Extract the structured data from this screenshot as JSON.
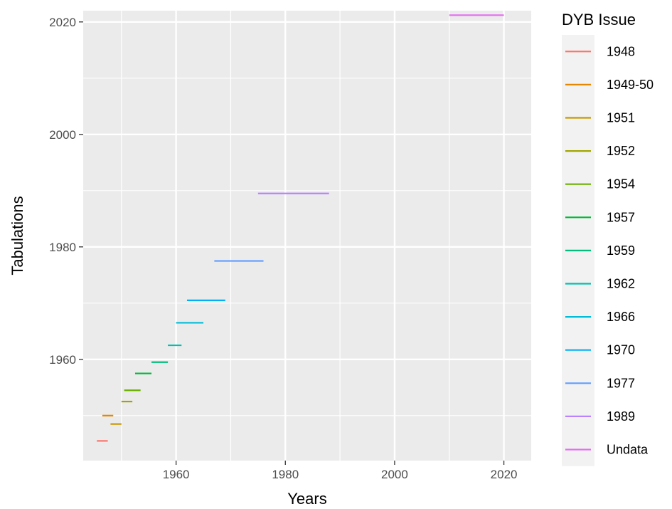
{
  "chart_data": {
    "type": "line",
    "title": "",
    "xlabel": "Years",
    "ylabel": "Tabulations",
    "xlim": [
      1943,
      2025
    ],
    "ylim": [
      1942,
      2022
    ],
    "x_ticks": [
      1960,
      1980,
      2000,
      2020
    ],
    "y_ticks": [
      1960,
      1980,
      2000,
      2020
    ],
    "grid": true,
    "legend": {
      "title": "DYB Issue",
      "position": "right"
    },
    "series": [
      {
        "name": "1948",
        "color": "#F8766D",
        "x": [
          1945.5,
          1947.5
        ],
        "y": 1945.5
      },
      {
        "name": "1949-50",
        "color": "#E58700",
        "x": [
          1946.5,
          1948.5
        ],
        "y": 1950
      },
      {
        "name": "1951",
        "color": "#C99800",
        "x": [
          1948.0,
          1950.0
        ],
        "y": 1948.5
      },
      {
        "name": "1952",
        "color": "#A3A500",
        "x": [
          1950.0,
          1952.0
        ],
        "y": 1952.5
      },
      {
        "name": "1954",
        "color": "#6BB100",
        "x": [
          1950.5,
          1953.5
        ],
        "y": 1954.5
      },
      {
        "name": "1957",
        "color": "#00BA38",
        "x": [
          1952.5,
          1955.5
        ],
        "y": 1957.5
      },
      {
        "name": "1959",
        "color": "#00BF7D",
        "x": [
          1955.5,
          1958.5
        ],
        "y": 1959.5
      },
      {
        "name": "1962",
        "color": "#00C0AF",
        "x": [
          1958.5,
          1961.0
        ],
        "y": 1962.5
      },
      {
        "name": "1966",
        "color": "#00BCD8",
        "x": [
          1960.0,
          1965.0
        ],
        "y": 1966.5
      },
      {
        "name": "1970",
        "color": "#00B0F6",
        "x": [
          1962.0,
          1969.0
        ],
        "y": 1970.5
      },
      {
        "name": "1977",
        "color": "#619CFF",
        "x": [
          1967.0,
          1976.0
        ],
        "y": 1977.5
      },
      {
        "name": "1989",
        "color": "#B983FF",
        "x": [
          1975.0,
          1988.0
        ],
        "y": 1989.5
      },
      {
        "name": "Undata",
        "color": "#E76BF3",
        "x": [
          2010.0,
          2020.0
        ],
        "y": 2021.2
      }
    ]
  }
}
